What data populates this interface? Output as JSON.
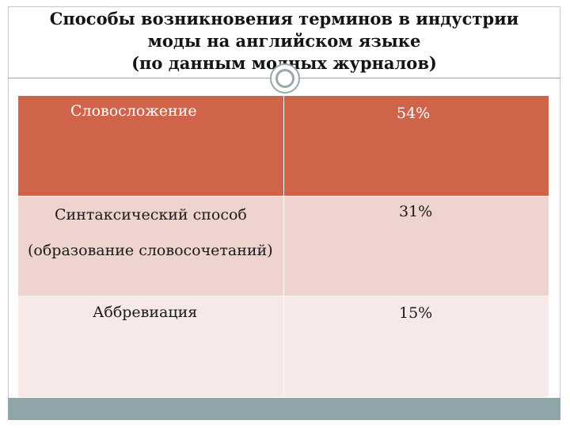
{
  "slide": {
    "title": "Способы возникновения терминов в индустрии\nмоды на английском языке\n(по данным модных журналов)"
  },
  "table": {
    "rows": [
      {
        "method": "Словосложение",
        "share": "54%"
      },
      {
        "method": "Синтаксический способ",
        "method_note": "(образование словосочетаний)",
        "share": "31%"
      },
      {
        "method": "Аббревиация",
        "share": "15%"
      }
    ]
  },
  "colors": {
    "header_row": "#d0644a",
    "row_2": "#eed3cf",
    "row_3": "#f7e9e7",
    "accent_bar": "#8fa5aa"
  }
}
